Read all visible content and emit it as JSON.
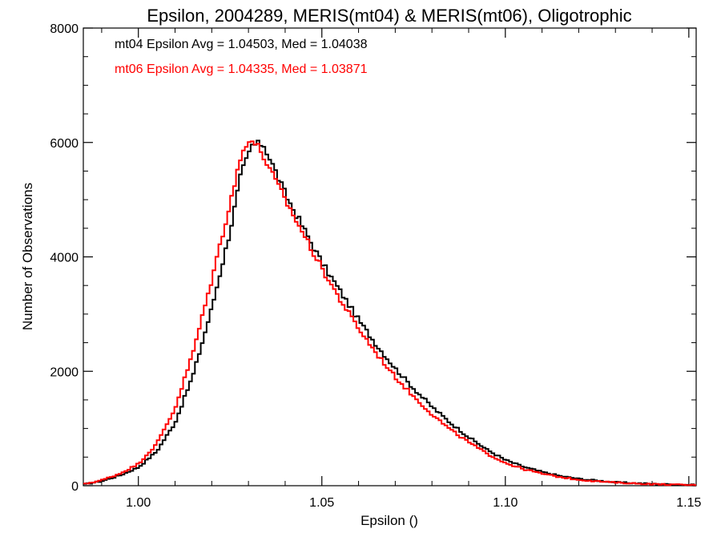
{
  "chart_data": {
    "type": "line",
    "title": "Epsilon, 2004289, MERIS(mt04) & MERIS(mt06), Oligotrophic",
    "xlabel": "Epsilon ()",
    "ylabel": "Number of Observations",
    "xlim": [
      0.985,
      1.152
    ],
    "ylim": [
      0,
      8000
    ],
    "x_ticks": [
      "1.00",
      "1.05",
      "1.10",
      "1.15"
    ],
    "y_ticks": [
      "0",
      "2000",
      "4000",
      "6000",
      "8000"
    ],
    "grid": false,
    "style": "step histogram",
    "annotations": [
      {
        "text": "mt04 Epsilon Avg = 1.04503, Med = 1.04038",
        "color": "#000000"
      },
      {
        "text": "mt06 Epsilon Avg = 1.04335, Med = 1.03871",
        "color": "#ff0000"
      }
    ],
    "series": [
      {
        "color": "#000000",
        "points": [
          [
            0.985,
            20
          ],
          [
            0.99,
            80
          ],
          [
            0.995,
            180
          ],
          [
            1.0,
            320
          ],
          [
            1.005,
            600
          ],
          [
            1.01,
            1100
          ],
          [
            1.015,
            1950
          ],
          [
            1.02,
            3100
          ],
          [
            1.025,
            4450
          ],
          [
            1.028,
            5450
          ],
          [
            1.031,
            5950
          ],
          [
            1.034,
            5980
          ],
          [
            1.037,
            5550
          ],
          [
            1.04,
            5100
          ],
          [
            1.045,
            4500
          ],
          [
            1.05,
            3900
          ],
          [
            1.055,
            3400
          ],
          [
            1.06,
            2900
          ],
          [
            1.065,
            2450
          ],
          [
            1.07,
            2050
          ],
          [
            1.075,
            1700
          ],
          [
            1.08,
            1380
          ],
          [
            1.085,
            1100
          ],
          [
            1.09,
            850
          ],
          [
            1.095,
            630
          ],
          [
            1.1,
            450
          ],
          [
            1.105,
            330
          ],
          [
            1.11,
            240
          ],
          [
            1.115,
            170
          ],
          [
            1.12,
            120
          ],
          [
            1.125,
            90
          ],
          [
            1.13,
            60
          ],
          [
            1.135,
            45
          ],
          [
            1.14,
            32
          ],
          [
            1.145,
            22
          ],
          [
            1.152,
            12
          ]
        ]
      },
      {
        "color": "#ff0000",
        "points": [
          [
            0.985,
            25
          ],
          [
            0.99,
            95
          ],
          [
            0.995,
            210
          ],
          [
            1.0,
            380
          ],
          [
            1.005,
            730
          ],
          [
            1.01,
            1350
          ],
          [
            1.015,
            2350
          ],
          [
            1.02,
            3600
          ],
          [
            1.025,
            4950
          ],
          [
            1.028,
            5750
          ],
          [
            1.03,
            6080
          ],
          [
            1.033,
            5900
          ],
          [
            1.036,
            5500
          ],
          [
            1.04,
            5000
          ],
          [
            1.045,
            4400
          ],
          [
            1.05,
            3800
          ],
          [
            1.055,
            3250
          ],
          [
            1.06,
            2750
          ],
          [
            1.065,
            2300
          ],
          [
            1.07,
            1900
          ],
          [
            1.075,
            1560
          ],
          [
            1.08,
            1250
          ],
          [
            1.085,
            980
          ],
          [
            1.09,
            760
          ],
          [
            1.095,
            560
          ],
          [
            1.1,
            400
          ],
          [
            1.105,
            290
          ],
          [
            1.11,
            210
          ],
          [
            1.115,
            150
          ],
          [
            1.12,
            105
          ],
          [
            1.125,
            78
          ],
          [
            1.13,
            55
          ],
          [
            1.135,
            40
          ],
          [
            1.14,
            28
          ],
          [
            1.145,
            20
          ],
          [
            1.152,
            10
          ]
        ]
      }
    ]
  }
}
